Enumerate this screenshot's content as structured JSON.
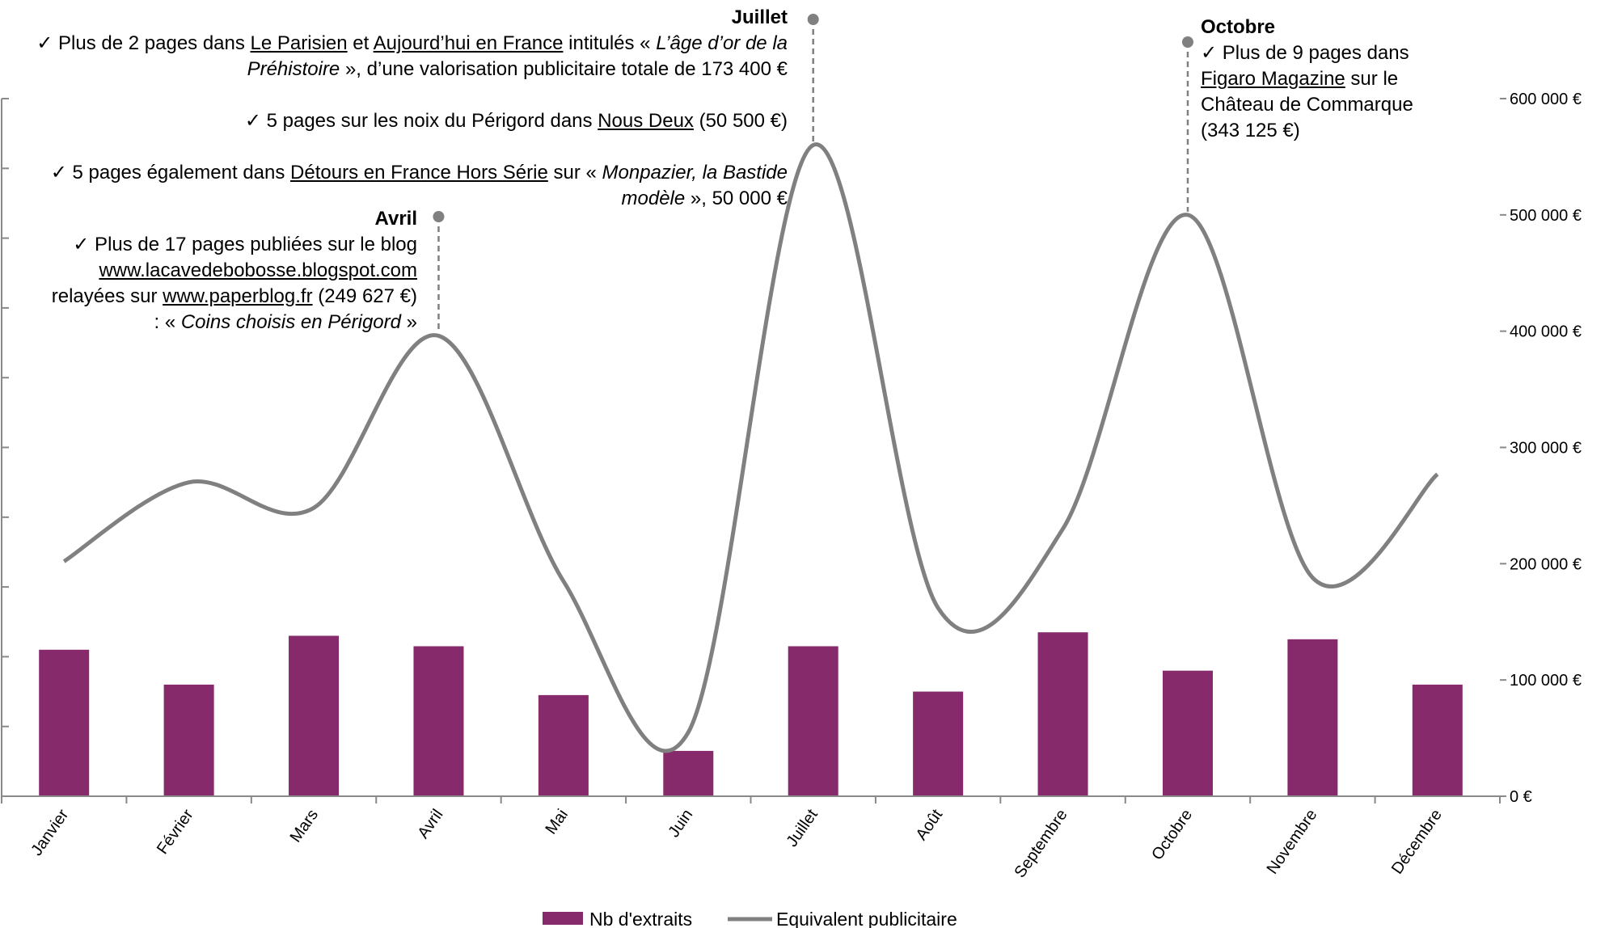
{
  "colors": {
    "bar": "#862A6B",
    "line": "#808080",
    "axis": "#898989",
    "text": "#000000"
  },
  "chart_data": {
    "type": "bar",
    "categories": [
      "Janvier",
      "Février",
      "Mars",
      "Avril",
      "Mai",
      "Juin",
      "Juillet",
      "Août",
      "Septembre",
      "Octobre",
      "Novembre",
      "Décembre"
    ],
    "series": [
      {
        "name": "Nb d'extraits",
        "type": "bar",
        "axis": "left",
        "values": [
          21,
          16,
          23,
          21.5,
          14.5,
          6.5,
          21.5,
          15,
          23.5,
          18,
          22.5,
          16
        ]
      },
      {
        "name": "Equivalent publicitaire",
        "type": "line",
        "axis": "right",
        "values": [
          202000,
          270000,
          248000,
          396000,
          185000,
          55000,
          560000,
          162000,
          230000,
          500000,
          188000,
          277000
        ]
      }
    ],
    "y_right": {
      "ticks": [
        0,
        100000,
        200000,
        300000,
        400000,
        500000,
        600000
      ],
      "tick_labels": [
        "0 €",
        "100 000 €",
        "200 000 €",
        "300 000 €",
        "400 000 €",
        "500 000 €",
        "600 000 €"
      ],
      "ylim": [
        0,
        600000
      ]
    },
    "y_left": {
      "ylim": [
        0,
        100
      ]
    },
    "legend": {
      "position": "bottom",
      "entries": [
        "Nb d'extraits",
        "Equivalent publicitaire"
      ]
    },
    "grid": false
  },
  "annotations": {
    "avril": {
      "month": "Avril",
      "title": "Avril",
      "lines": [
        "✓ Plus de 17 pages publiées sur le blog",
        "www.lacavedebobosse.blogspot.com",
        "relayées sur www.paperblog.fr (249 627 €)",
        ": « Coins choisis en Périgord »"
      ]
    },
    "juillet": {
      "month": "Juillet",
      "title": "Juillet",
      "items": [
        "✓ Plus de 2 pages dans Le Parisien et Aujourd’hui en France intitulés « L’âge d’or de la Préhistoire », d’une valorisation publicitaire totale de 173 400 €",
        "✓ 5 pages sur les noix du Périgord dans Nous Deux (50 500 €)",
        "✓ 5 pages également dans Détours en France Hors Série sur « Monpazier, la Bastide modèle », 50 000 €"
      ]
    },
    "octobre": {
      "month": "Octobre",
      "title": "Octobre",
      "lines": [
        "✓ Plus de 9 pages dans",
        "Figaro Magazine sur le",
        "Château de Commarque",
        "(343 125 €)"
      ]
    }
  }
}
